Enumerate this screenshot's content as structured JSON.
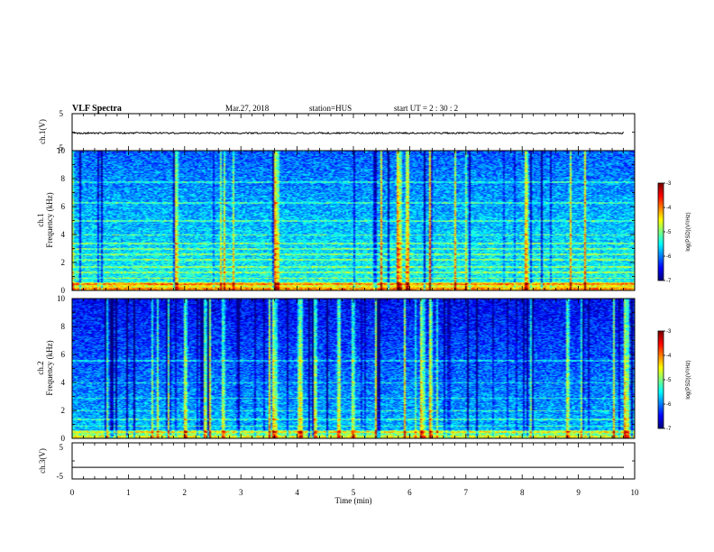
{
  "header": {
    "title": "VLF Spectra",
    "date": "Mar.27, 2018",
    "station": "station=HUS",
    "start": "start  UT  =   2 : 30 : 2"
  },
  "chart_data": [
    {
      "type": "line",
      "id": "ch1_waveform",
      "ylabel": "ch.1(V)",
      "ylim": [
        -5,
        5
      ],
      "yticks": [
        "5",
        "-5"
      ],
      "xlim": [
        0,
        10
      ],
      "level": -0.3
    },
    {
      "type": "heatmap",
      "id": "ch1_spectrogram",
      "ylabel": "ch.1\nFrequency (kHz)",
      "ylim": [
        0,
        10
      ],
      "yticks": [
        "0",
        "2",
        "4",
        "6",
        "8",
        "10"
      ],
      "xlim": [
        0,
        10
      ],
      "colorbar": {
        "label": "log(PSD)(V²/Hz)",
        "range": [
          -7,
          -3
        ],
        "ticks": [
          "-3",
          "-4",
          "-5",
          "-6",
          "-7"
        ]
      }
    },
    {
      "type": "heatmap",
      "id": "ch2_spectrogram",
      "ylabel": "ch.2\nFrequency (kHz)",
      "ylim": [
        0,
        10
      ],
      "yticks": [
        "0",
        "2",
        "4",
        "6",
        "8",
        "10"
      ],
      "xlim": [
        0,
        10
      ],
      "colorbar": {
        "label": "log(PSD)(V²/Hz)",
        "range": [
          -7,
          -3
        ],
        "ticks": [
          "-3",
          "-4",
          "-5",
          "-6",
          "-7"
        ]
      }
    },
    {
      "type": "line",
      "id": "ch3_waveform",
      "ylabel": "ch.3(V)",
      "ylim": [
        -5,
        5
      ],
      "yticks": [
        "5",
        "-5"
      ],
      "xlim": [
        0,
        10
      ],
      "level": -2.0
    }
  ],
  "xaxis": {
    "label": "Time (min)",
    "ticks": [
      "0",
      "1",
      "2",
      "3",
      "4",
      "5",
      "6",
      "7",
      "8",
      "9",
      "10"
    ]
  },
  "labels": {
    "ch1_v": "ch.1(V)",
    "ch1_a": "ch.1",
    "ch1_b": "Frequency (kHz)",
    "ch2_a": "ch.2",
    "ch2_b": "Frequency (kHz)",
    "ch3_v": "ch.3(V)",
    "cbar1": "log(PSD)(V²/Hz)",
    "cbar2": "log(PSD)(V²/Hz)"
  },
  "colors": {
    "background": "#ffffff",
    "frame": "#000000",
    "trace": "#000000"
  }
}
